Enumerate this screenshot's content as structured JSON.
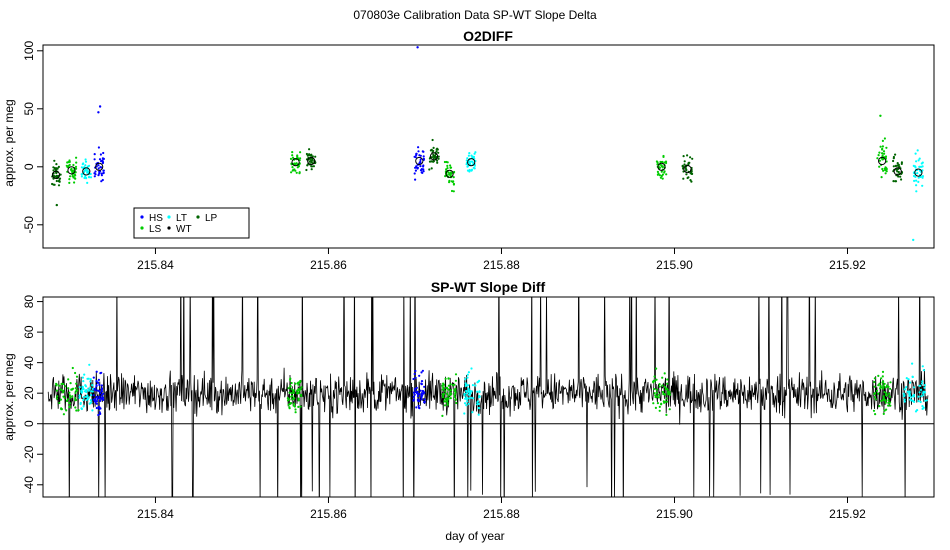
{
  "figure_title": "070803e   Calibration Data SP-WT Slope Delta",
  "chart_data": [
    {
      "type": "scatter",
      "title": "O2DIFF",
      "xlabel": "",
      "ylabel": "approx. per meg",
      "xlim": [
        215.827,
        215.93
      ],
      "ylim": [
        -70,
        105
      ],
      "x_ticks": [
        215.84,
        215.86,
        215.88,
        215.9,
        215.92
      ],
      "x_tick_labels": [
        "215.84",
        "215.86",
        "215.88",
        "215.90",
        "215.92"
      ],
      "y_ticks": [
        -50,
        0,
        50,
        100
      ],
      "y_tick_labels": [
        "-50",
        "0",
        "50",
        "100"
      ],
      "grid": false,
      "legend_position": "bottom-left",
      "legend": [
        {
          "name": "HS",
          "color": "#0000ff"
        },
        {
          "name": "LS",
          "color": "#00cc00"
        },
        {
          "name": "LT",
          "color": "#00ffff"
        },
        {
          "name": "WT",
          "color": "#000000"
        },
        {
          "name": "LP",
          "color": "#006400"
        }
      ],
      "groups": [
        {
          "series": "LP",
          "x": 215.8285,
          "mean": -7,
          "spread": 9
        },
        {
          "series": "LS",
          "x": 215.8303,
          "mean": -3,
          "spread": 8
        },
        {
          "series": "LT",
          "x": 215.832,
          "mean": -4,
          "spread": 8
        },
        {
          "series": "HS",
          "x": 215.8335,
          "mean": 0,
          "spread": 12
        },
        {
          "series": "LS",
          "x": 215.8562,
          "mean": 4,
          "spread": 7
        },
        {
          "series": "LP",
          "x": 215.858,
          "mean": 5,
          "spread": 8
        },
        {
          "series": "HS",
          "x": 215.8705,
          "mean": 5,
          "spread": 12
        },
        {
          "series": "LP",
          "x": 215.8722,
          "mean": 9,
          "spread": 9
        },
        {
          "series": "LS",
          "x": 215.874,
          "mean": -6,
          "spread": 10
        },
        {
          "series": "LT",
          "x": 215.8765,
          "mean": 4,
          "spread": 8
        },
        {
          "series": "LS",
          "x": 215.8985,
          "mean": 0,
          "spread": 8
        },
        {
          "series": "LP",
          "x": 215.9015,
          "mean": -2,
          "spread": 9
        },
        {
          "series": "LS",
          "x": 215.924,
          "mean": 5,
          "spread": 14
        },
        {
          "series": "LP",
          "x": 215.9258,
          "mean": -4,
          "spread": 10
        },
        {
          "series": "LT",
          "x": 215.9282,
          "mean": -5,
          "spread": 13
        }
      ],
      "outliers": [
        {
          "x": 215.8703,
          "y": 103,
          "series": "HS"
        },
        {
          "x": 215.8336,
          "y": 52,
          "series": "HS"
        },
        {
          "x": 215.8334,
          "y": 47,
          "series": "HS"
        },
        {
          "x": 215.9276,
          "y": -63,
          "series": "LT"
        },
        {
          "x": 215.9238,
          "y": 44,
          "series": "LS"
        },
        {
          "x": 215.8286,
          "y": -33,
          "series": "LP"
        }
      ]
    },
    {
      "type": "line",
      "title": "SP-WT Slope Diff",
      "xlabel": "day of year",
      "ylabel": "approx. per meg",
      "xlim": [
        215.827,
        215.93
      ],
      "ylim": [
        -48,
        83
      ],
      "x_ticks": [
        215.84,
        215.86,
        215.88,
        215.9,
        215.92
      ],
      "x_tick_labels": [
        "215.84",
        "215.86",
        "215.88",
        "215.90",
        "215.92"
      ],
      "y_ticks": [
        -40,
        -20,
        0,
        20,
        40,
        60,
        80
      ],
      "y_tick_labels": [
        "-40",
        "-20",
        "0",
        "20",
        "40",
        "60",
        "80"
      ],
      "hline": 0,
      "grid": false,
      "series": [
        {
          "name": "SP-WT slope diff",
          "color": "#000000",
          "x_start": 215.8276,
          "x_end": 215.9293,
          "baseline": 20,
          "noise_sd": 12
        }
      ],
      "highlight_windows": [
        {
          "series": "LS",
          "color": "#00cc00",
          "from": 215.8285,
          "to": 215.8312
        },
        {
          "series": "LT",
          "color": "#00ffff",
          "from": 215.8312,
          "to": 215.8328
        },
        {
          "series": "HS",
          "color": "#0000ff",
          "from": 215.8328,
          "to": 215.834
        },
        {
          "series": "LS",
          "color": "#00cc00",
          "from": 215.8553,
          "to": 215.857
        },
        {
          "series": "HS",
          "color": "#0000ff",
          "from": 215.8698,
          "to": 215.8712
        },
        {
          "series": "LS",
          "color": "#00cc00",
          "from": 215.873,
          "to": 215.8748
        },
        {
          "series": "LT",
          "color": "#00ffff",
          "from": 215.8757,
          "to": 215.8775
        },
        {
          "series": "LS",
          "color": "#00cc00",
          "from": 215.8975,
          "to": 215.8995
        },
        {
          "series": "LS",
          "color": "#00cc00",
          "from": 215.923,
          "to": 215.925
        },
        {
          "series": "LT",
          "color": "#00ffff",
          "from": 215.9265,
          "to": 215.9292
        }
      ]
    }
  ]
}
